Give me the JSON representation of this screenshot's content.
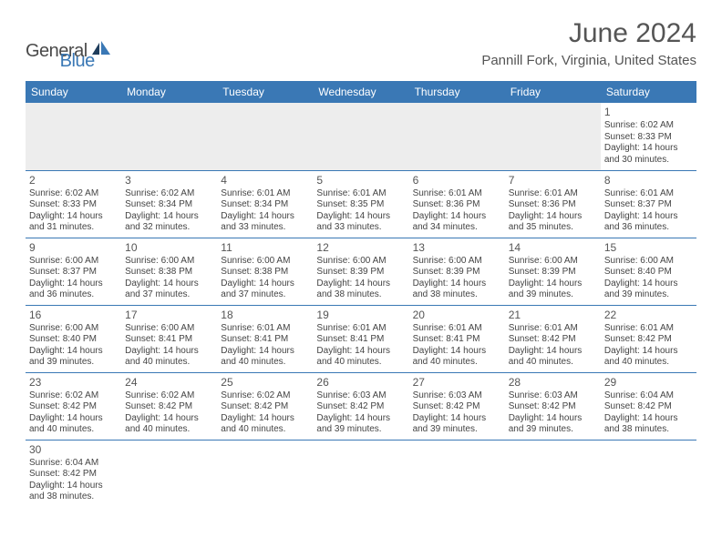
{
  "brand": {
    "part1": "General",
    "part2": "Blue"
  },
  "title": "June 2024",
  "location": "Pannill Fork, Virginia, United States",
  "colors": {
    "header_bg": "#3a78b5",
    "header_text": "#ffffff",
    "border": "#3a78b5",
    "body_text": "#444444",
    "title_text": "#555555",
    "blank_bg": "#ededed",
    "page_bg": "#ffffff"
  },
  "typography": {
    "title_fontsize": 30,
    "location_fontsize": 15,
    "dayheader_fontsize": 12,
    "cell_fontsize": 10,
    "daynum_fontsize": 12
  },
  "day_headers": [
    "Sunday",
    "Monday",
    "Tuesday",
    "Wednesday",
    "Thursday",
    "Friday",
    "Saturday"
  ],
  "days": {
    "1": {
      "sunrise": "6:02 AM",
      "sunset": "8:33 PM",
      "daylight": "14 hours and 30 minutes."
    },
    "2": {
      "sunrise": "6:02 AM",
      "sunset": "8:33 PM",
      "daylight": "14 hours and 31 minutes."
    },
    "3": {
      "sunrise": "6:02 AM",
      "sunset": "8:34 PM",
      "daylight": "14 hours and 32 minutes."
    },
    "4": {
      "sunrise": "6:01 AM",
      "sunset": "8:34 PM",
      "daylight": "14 hours and 33 minutes."
    },
    "5": {
      "sunrise": "6:01 AM",
      "sunset": "8:35 PM",
      "daylight": "14 hours and 33 minutes."
    },
    "6": {
      "sunrise": "6:01 AM",
      "sunset": "8:36 PM",
      "daylight": "14 hours and 34 minutes."
    },
    "7": {
      "sunrise": "6:01 AM",
      "sunset": "8:36 PM",
      "daylight": "14 hours and 35 minutes."
    },
    "8": {
      "sunrise": "6:01 AM",
      "sunset": "8:37 PM",
      "daylight": "14 hours and 36 minutes."
    },
    "9": {
      "sunrise": "6:00 AM",
      "sunset": "8:37 PM",
      "daylight": "14 hours and 36 minutes."
    },
    "10": {
      "sunrise": "6:00 AM",
      "sunset": "8:38 PM",
      "daylight": "14 hours and 37 minutes."
    },
    "11": {
      "sunrise": "6:00 AM",
      "sunset": "8:38 PM",
      "daylight": "14 hours and 37 minutes."
    },
    "12": {
      "sunrise": "6:00 AM",
      "sunset": "8:39 PM",
      "daylight": "14 hours and 38 minutes."
    },
    "13": {
      "sunrise": "6:00 AM",
      "sunset": "8:39 PM",
      "daylight": "14 hours and 38 minutes."
    },
    "14": {
      "sunrise": "6:00 AM",
      "sunset": "8:39 PM",
      "daylight": "14 hours and 39 minutes."
    },
    "15": {
      "sunrise": "6:00 AM",
      "sunset": "8:40 PM",
      "daylight": "14 hours and 39 minutes."
    },
    "16": {
      "sunrise": "6:00 AM",
      "sunset": "8:40 PM",
      "daylight": "14 hours and 39 minutes."
    },
    "17": {
      "sunrise": "6:00 AM",
      "sunset": "8:41 PM",
      "daylight": "14 hours and 40 minutes."
    },
    "18": {
      "sunrise": "6:01 AM",
      "sunset": "8:41 PM",
      "daylight": "14 hours and 40 minutes."
    },
    "19": {
      "sunrise": "6:01 AM",
      "sunset": "8:41 PM",
      "daylight": "14 hours and 40 minutes."
    },
    "20": {
      "sunrise": "6:01 AM",
      "sunset": "8:41 PM",
      "daylight": "14 hours and 40 minutes."
    },
    "21": {
      "sunrise": "6:01 AM",
      "sunset": "8:42 PM",
      "daylight": "14 hours and 40 minutes."
    },
    "22": {
      "sunrise": "6:01 AM",
      "sunset": "8:42 PM",
      "daylight": "14 hours and 40 minutes."
    },
    "23": {
      "sunrise": "6:02 AM",
      "sunset": "8:42 PM",
      "daylight": "14 hours and 40 minutes."
    },
    "24": {
      "sunrise": "6:02 AM",
      "sunset": "8:42 PM",
      "daylight": "14 hours and 40 minutes."
    },
    "25": {
      "sunrise": "6:02 AM",
      "sunset": "8:42 PM",
      "daylight": "14 hours and 40 minutes."
    },
    "26": {
      "sunrise": "6:03 AM",
      "sunset": "8:42 PM",
      "daylight": "14 hours and 39 minutes."
    },
    "27": {
      "sunrise": "6:03 AM",
      "sunset": "8:42 PM",
      "daylight": "14 hours and 39 minutes."
    },
    "28": {
      "sunrise": "6:03 AM",
      "sunset": "8:42 PM",
      "daylight": "14 hours and 39 minutes."
    },
    "29": {
      "sunrise": "6:04 AM",
      "sunset": "8:42 PM",
      "daylight": "14 hours and 38 minutes."
    },
    "30": {
      "sunrise": "6:04 AM",
      "sunset": "8:42 PM",
      "daylight": "14 hours and 38 minutes."
    }
  },
  "labels": {
    "sunrise_prefix": "Sunrise: ",
    "sunset_prefix": "Sunset: ",
    "daylight_prefix": "Daylight: "
  },
  "layout": {
    "grid": [
      [
        null,
        null,
        null,
        null,
        null,
        null,
        "1"
      ],
      [
        "2",
        "3",
        "4",
        "5",
        "6",
        "7",
        "8"
      ],
      [
        "9",
        "10",
        "11",
        "12",
        "13",
        "14",
        "15"
      ],
      [
        "16",
        "17",
        "18",
        "19",
        "20",
        "21",
        "22"
      ],
      [
        "23",
        "24",
        "25",
        "26",
        "27",
        "28",
        "29"
      ],
      [
        "30",
        null,
        null,
        null,
        null,
        null,
        null
      ]
    ]
  }
}
